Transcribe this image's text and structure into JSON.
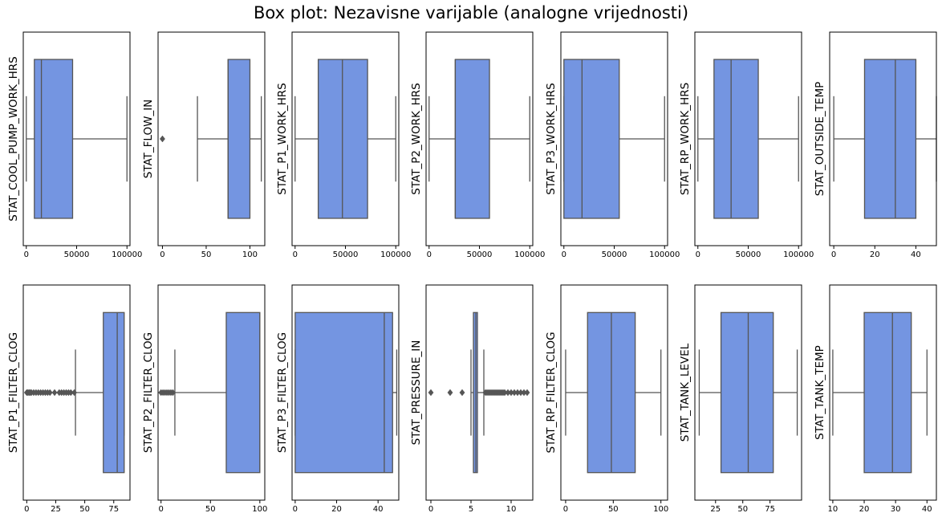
{
  "chart_data": {
    "type": "box",
    "title": "Box plot: Nezavisne varijable (analogne vrijednosti)",
    "colors": {
      "box_fill": "#7495e1",
      "line": "#555555",
      "frame": "#000000"
    },
    "subplots": [
      {
        "label": "STAT_COOL_PUMP_WORK_HRS",
        "xlim": [
          -3000,
          103000
        ],
        "ticks": [
          0,
          50000,
          100000
        ],
        "tick_labels": [
          "0",
          "50000",
          "100000"
        ],
        "box": {
          "whislo": 0,
          "q1": 8000,
          "median": 15000,
          "q3": 46000,
          "whishi": 100000
        },
        "fliers": []
      },
      {
        "label": "STAT_FLOW_IN",
        "xlim": [
          -5,
          117
        ],
        "ticks": [
          0,
          50,
          100
        ],
        "tick_labels": [
          "0",
          "50",
          "100"
        ],
        "box": {
          "whislo": 40,
          "q1": 75,
          "median": 75,
          "q3": 100,
          "whishi": 113
        },
        "fliers": [
          0
        ]
      },
      {
        "label": "STAT_P1_WORK_HRS",
        "xlim": [
          -3000,
          103000
        ],
        "ticks": [
          0,
          50000,
          100000
        ],
        "tick_labels": [
          "0",
          "50000",
          "100000"
        ],
        "box": {
          "whislo": 0,
          "q1": 23000,
          "median": 47000,
          "q3": 72000,
          "whishi": 100000
        },
        "fliers": []
      },
      {
        "label": "STAT_P2_WORK_HRS",
        "xlim": [
          -3000,
          103000
        ],
        "ticks": [
          0,
          50000,
          100000
        ],
        "tick_labels": [
          "0",
          "50000",
          "100000"
        ],
        "box": {
          "whislo": 0,
          "q1": 26000,
          "median": 26000,
          "q3": 60000,
          "whishi": 100000
        },
        "fliers": []
      },
      {
        "label": "STAT_P3_WORK_HRS",
        "xlim": [
          -3000,
          103000
        ],
        "ticks": [
          0,
          50000,
          100000
        ],
        "tick_labels": [
          "0",
          "50000",
          "100000"
        ],
        "box": {
          "whislo": 0,
          "q1": 0,
          "median": 18000,
          "q3": 55000,
          "whishi": 100000
        },
        "fliers": []
      },
      {
        "label": "STAT_RP_WORK_HRS",
        "xlim": [
          -3000,
          103000
        ],
        "ticks": [
          0,
          50000,
          100000
        ],
        "tick_labels": [
          "0",
          "50000",
          "100000"
        ],
        "box": {
          "whislo": 0,
          "q1": 16000,
          "median": 33000,
          "q3": 60000,
          "whishi": 100000
        },
        "fliers": []
      },
      {
        "label": "STAT_OUTSIDE_TEMP",
        "xlim": [
          -2,
          50
        ],
        "ticks": [
          0,
          20,
          40
        ],
        "tick_labels": [
          "0",
          "20",
          "40"
        ],
        "box": {
          "whislo": 0,
          "q1": 15,
          "median": 30,
          "q3": 40,
          "whishi": 50
        },
        "fliers": []
      },
      {
        "label": "STAT_P1_FILTER_CLOG",
        "xlim": [
          -3,
          89
        ],
        "ticks": [
          0,
          25,
          50,
          75
        ],
        "tick_labels": [
          "0",
          "25",
          "50",
          "75"
        ],
        "box": {
          "whislo": 42,
          "q1": 66,
          "median": 78,
          "q3": 84,
          "whishi": 84
        },
        "fliers": [
          0,
          1,
          2,
          3,
          4,
          6,
          8,
          10,
          12,
          14,
          16,
          18,
          20,
          24,
          28,
          30,
          32,
          34,
          36,
          38,
          41
        ]
      },
      {
        "label": "STAT_P2_FILTER_CLOG",
        "xlim": [
          -3,
          105
        ],
        "ticks": [
          0,
          50,
          100
        ],
        "tick_labels": [
          "0",
          "50",
          "100"
        ],
        "box": {
          "whislo": 14,
          "q1": 66,
          "median": 100,
          "q3": 100,
          "whishi": 100
        },
        "fliers": [
          0,
          2,
          4,
          6,
          8,
          10,
          12
        ]
      },
      {
        "label": "STAT_P3_FILTER_CLOG",
        "xlim": [
          -1.5,
          50
        ],
        "ticks": [
          0,
          20,
          40
        ],
        "tick_labels": [
          "0",
          "20",
          "40"
        ],
        "box": {
          "whislo": 0,
          "q1": 0,
          "median": 43,
          "q3": 47,
          "whishi": 49
        },
        "fliers": []
      },
      {
        "label": "STAT_PRESSURE_IN",
        "xlim": [
          -0.6,
          12.7
        ],
        "ticks": [
          0,
          5,
          10
        ],
        "tick_labels": [
          "0",
          "5",
          "10"
        ],
        "box": {
          "whislo": 5,
          "q1": 5.3,
          "median": 5.6,
          "q3": 5.8,
          "whishi": 6.6
        },
        "fliers": [
          0,
          2.4,
          3.9,
          6.8,
          7.0,
          7.2,
          7.4,
          7.6,
          7.8,
          8.0,
          8.2,
          8.4,
          8.6,
          8.8,
          9.0,
          9.2,
          9.6,
          10.0,
          10.4,
          10.8,
          11.2,
          11.6,
          12.0
        ]
      },
      {
        "label": "STAT_RP_FILTER_CLOG",
        "xlim": [
          -5,
          107
        ],
        "ticks": [
          0,
          50,
          100
        ],
        "tick_labels": [
          "0",
          "50",
          "100"
        ],
        "box": {
          "whislo": 0,
          "q1": 23,
          "median": 48,
          "q3": 73,
          "whishi": 100
        },
        "fliers": []
      },
      {
        "label": "STAT_TANK_LEVEL",
        "xlim": [
          6,
          104
        ],
        "ticks": [
          25,
          50,
          75
        ],
        "tick_labels": [
          "25",
          "50",
          "75"
        ],
        "box": {
          "whislo": 10,
          "q1": 30,
          "median": 55,
          "q3": 78,
          "whishi": 100
        },
        "fliers": []
      },
      {
        "label": "STAT_TANK_TEMP",
        "xlim": [
          9,
          43
        ],
        "ticks": [
          10,
          20,
          30,
          40
        ],
        "tick_labels": [
          "10",
          "20",
          "30",
          "40"
        ],
        "box": {
          "whislo": 10,
          "q1": 20,
          "median": 29,
          "q3": 35,
          "whishi": 40
        },
        "fliers": []
      }
    ]
  }
}
